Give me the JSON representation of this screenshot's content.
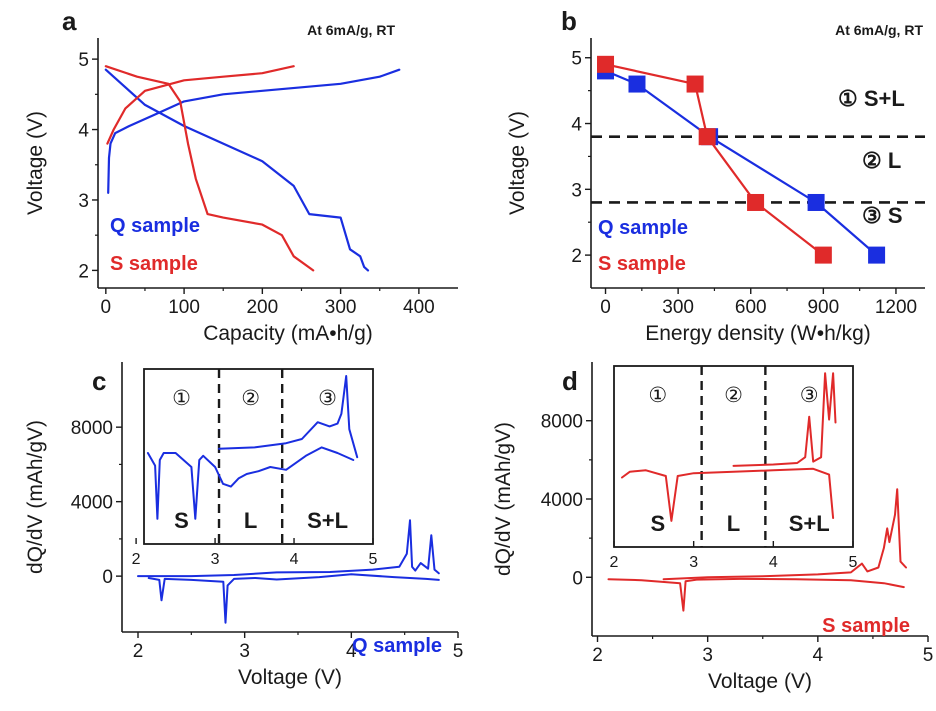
{
  "panels": {
    "a": {
      "letter": "a",
      "note": "At 6mA/g, RT"
    },
    "b": {
      "letter": "b",
      "note": "At 6mA/g, RT",
      "regions": {
        "r1": "① S+L",
        "r2": "② L",
        "r3": "③ S"
      }
    },
    "c": {
      "letter": "c"
    },
    "d": {
      "letter": "d"
    }
  },
  "colors": {
    "q": "#1a2ee0",
    "s": "#e02a2a",
    "axis": "#1a1a1a"
  },
  "chart_data": [
    {
      "id": "a",
      "type": "line",
      "xlabel": "Capacity (mA•h/g)",
      "ylabel": "Voltage (V)",
      "xlim": [
        -10,
        450
      ],
      "ylim": [
        1.75,
        5.3
      ],
      "xticks": [
        "0",
        "100",
        "200",
        "300",
        "400"
      ],
      "yticks": [
        "2",
        "3",
        "4",
        "5"
      ],
      "legend": [
        "Q sample",
        "S sample"
      ],
      "series": [
        {
          "name": "Q sample",
          "segment": "charge",
          "points": [
            [
              3,
              3.1
            ],
            [
              4,
              3.6
            ],
            [
              6,
              3.8
            ],
            [
              12,
              3.95
            ],
            [
              30,
              4.05
            ],
            [
              60,
              4.2
            ],
            [
              100,
              4.4
            ],
            [
              150,
              4.5
            ],
            [
              200,
              4.55
            ],
            [
              250,
              4.6
            ],
            [
              300,
              4.65
            ],
            [
              350,
              4.75
            ],
            [
              375,
              4.85
            ]
          ]
        },
        {
          "name": "Q sample",
          "segment": "discharge",
          "points": [
            [
              0,
              4.85
            ],
            [
              20,
              4.65
            ],
            [
              50,
              4.35
            ],
            [
              100,
              4.05
            ],
            [
              150,
              3.8
            ],
            [
              200,
              3.55
            ],
            [
              240,
              3.2
            ],
            [
              260,
              2.8
            ],
            [
              300,
              2.75
            ],
            [
              312,
              2.3
            ],
            [
              325,
              2.2
            ],
            [
              330,
              2.05
            ],
            [
              335,
              2.0
            ]
          ]
        },
        {
          "name": "S sample",
          "segment": "charge",
          "points": [
            [
              2,
              3.8
            ],
            [
              10,
              4.0
            ],
            [
              25,
              4.3
            ],
            [
              50,
              4.55
            ],
            [
              100,
              4.7
            ],
            [
              150,
              4.75
            ],
            [
              200,
              4.8
            ],
            [
              240,
              4.9
            ]
          ]
        },
        {
          "name": "S sample",
          "segment": "discharge",
          "points": [
            [
              0,
              4.9
            ],
            [
              40,
              4.75
            ],
            [
              80,
              4.65
            ],
            [
              95,
              4.4
            ],
            [
              105,
              3.8
            ],
            [
              115,
              3.3
            ],
            [
              130,
              2.8
            ],
            [
              150,
              2.75
            ],
            [
              200,
              2.65
            ],
            [
              225,
              2.5
            ],
            [
              240,
              2.2
            ],
            [
              265,
              2.0
            ]
          ]
        }
      ]
    },
    {
      "id": "b",
      "type": "line",
      "xlabel": "Energy density (W•h/kg)",
      "ylabel": "Voltage (V)",
      "xlim": [
        -60,
        1320
      ],
      "ylim": [
        1.5,
        5.3
      ],
      "xticks": [
        "0",
        "300",
        "600",
        "900",
        "1200"
      ],
      "yticks": [
        "2",
        "3",
        "4",
        "5"
      ],
      "legend": [
        "Q sample",
        "S sample"
      ],
      "dashed_lines_y": [
        3.8,
        2.8
      ],
      "series": [
        {
          "name": "Q sample",
          "x": [
            0,
            130,
            430,
            870,
            1120
          ],
          "y": [
            4.8,
            4.6,
            3.8,
            2.8,
            2.0
          ]
        },
        {
          "name": "S sample",
          "x": [
            0,
            370,
            420,
            620,
            900
          ],
          "y": [
            4.9,
            4.6,
            3.8,
            2.8,
            2.0
          ]
        }
      ]
    },
    {
      "id": "c",
      "type": "line",
      "xlabel": "Voltage (V)",
      "ylabel": "dQ/dV (mAh/gV)",
      "xlim": [
        1.85,
        5.0
      ],
      "ylim": [
        -3000,
        11500
      ],
      "xticks": [
        "2",
        "3",
        "4",
        "5"
      ],
      "yticks": [
        "0",
        "4000",
        "8000"
      ],
      "legend": [
        "Q sample"
      ],
      "series": [
        {
          "name": "Q sample",
          "segment": "charge",
          "points": [
            [
              2.0,
              0
            ],
            [
              2.5,
              0
            ],
            [
              2.9,
              60
            ],
            [
              3.3,
              200
            ],
            [
              3.8,
              220
            ],
            [
              4.2,
              350
            ],
            [
              4.45,
              500
            ],
            [
              4.52,
              1200
            ],
            [
              4.55,
              3000
            ],
            [
              4.57,
              500
            ],
            [
              4.6,
              300
            ],
            [
              4.65,
              700
            ],
            [
              4.72,
              400
            ],
            [
              4.75,
              2200
            ],
            [
              4.78,
              350
            ],
            [
              4.82,
              150
            ]
          ]
        },
        {
          "name": "Q sample",
          "segment": "discharge",
          "points": [
            [
              4.82,
              -200
            ],
            [
              4.7,
              -150
            ],
            [
              4.4,
              -50
            ],
            [
              4.0,
              100
            ],
            [
              3.7,
              -50
            ],
            [
              3.3,
              -180
            ],
            [
              3.1,
              -100
            ],
            [
              2.9,
              -150
            ],
            [
              2.84,
              -500
            ],
            [
              2.82,
              -2500
            ],
            [
              2.8,
              -300
            ],
            [
              2.5,
              -200
            ],
            [
              2.25,
              -150
            ],
            [
              2.22,
              -1300
            ],
            [
              2.2,
              -200
            ],
            [
              2.1,
              -100
            ]
          ]
        }
      ],
      "inset": {
        "xlim": [
          2.1,
          5.0
        ],
        "xticks": [
          "2",
          "3",
          "4",
          "5"
        ],
        "dashed_x": [
          3.05,
          3.85
        ],
        "circles": [
          "①",
          "②",
          "③"
        ],
        "regions": [
          "S",
          "L",
          "S+L"
        ],
        "series": [
          {
            "name": "Q sample",
            "segment": "charge",
            "points": [
              [
                3.05,
                6800
              ],
              [
                3.5,
                6900
              ],
              [
                3.9,
                7200
              ],
              [
                4.1,
                7500
              ],
              [
                4.3,
                8700
              ],
              [
                4.45,
                8400
              ],
              [
                4.55,
                8600
              ],
              [
                4.6,
                9300
              ],
              [
                4.66,
                12000
              ],
              [
                4.7,
                8200
              ],
              [
                4.8,
                6200
              ]
            ]
          },
          {
            "name": "Q sample",
            "segment": "discharge",
            "points": [
              [
                4.75,
                6000
              ],
              [
                4.55,
                6500
              ],
              [
                4.35,
                6900
              ],
              [
                4.15,
                6300
              ],
              [
                3.9,
                5300
              ],
              [
                3.7,
                5500
              ],
              [
                3.55,
                5200
              ],
              [
                3.4,
                5000
              ],
              [
                3.3,
                4700
              ],
              [
                3.2,
                4100
              ],
              [
                3.1,
                4300
              ],
              [
                3.0,
                5500
              ],
              [
                2.85,
                6300
              ],
              [
                2.8,
                6000
              ],
              [
                2.75,
                1800
              ],
              [
                2.7,
                5500
              ],
              [
                2.5,
                6500
              ],
              [
                2.35,
                6500
              ],
              [
                2.3,
                6000
              ],
              [
                2.27,
                1800
              ],
              [
                2.24,
                5600
              ],
              [
                2.15,
                6500
              ]
            ]
          }
        ]
      }
    },
    {
      "id": "d",
      "type": "line",
      "xlabel": "Voltage (V)",
      "ylabel": "dQ/dV (mAh/gV)",
      "xlim": [
        1.95,
        5.0
      ],
      "ylim": [
        -3000,
        11000
      ],
      "xticks": [
        "2",
        "3",
        "4",
        "5"
      ],
      "yticks": [
        "0",
        "4000",
        "8000"
      ],
      "legend": [
        "S sample"
      ],
      "series": [
        {
          "name": "S sample",
          "segment": "charge",
          "points": [
            [
              2.6,
              -100
            ],
            [
              3.0,
              0
            ],
            [
              3.5,
              50
            ],
            [
              4.0,
              150
            ],
            [
              4.3,
              250
            ],
            [
              4.4,
              700
            ],
            [
              4.45,
              300
            ],
            [
              4.55,
              500
            ],
            [
              4.6,
              1500
            ],
            [
              4.63,
              2500
            ],
            [
              4.65,
              1800
            ],
            [
              4.7,
              3200
            ],
            [
              4.72,
              4500
            ],
            [
              4.75,
              800
            ],
            [
              4.8,
              500
            ]
          ]
        },
        {
          "name": "S sample",
          "segment": "discharge",
          "points": [
            [
              4.78,
              -500
            ],
            [
              4.6,
              -300
            ],
            [
              4.3,
              -150
            ],
            [
              3.8,
              -100
            ],
            [
              3.3,
              -80
            ],
            [
              2.9,
              -120
            ],
            [
              2.8,
              -200
            ],
            [
              2.78,
              -1700
            ],
            [
              2.75,
              -300
            ],
            [
              2.4,
              -150
            ],
            [
              2.1,
              -100
            ]
          ]
        }
      ],
      "inset": {
        "xlim": [
          2.0,
          5.0
        ],
        "xticks": [
          "2",
          "3",
          "4",
          "5"
        ],
        "dashed_x": [
          3.1,
          3.9
        ],
        "circles": [
          "①",
          "②",
          "③"
        ],
        "regions": [
          "S",
          "L",
          "S+L"
        ],
        "series": [
          {
            "name": "S sample",
            "segment": "charge",
            "points": [
              [
                3.5,
                5600
              ],
              [
                4.0,
                5700
              ],
              [
                4.3,
                5800
              ],
              [
                4.4,
                6200
              ],
              [
                4.45,
                9000
              ],
              [
                4.5,
                5900
              ],
              [
                4.6,
                6200
              ],
              [
                4.65,
                12000
              ],
              [
                4.7,
                8800
              ],
              [
                4.75,
                12000
              ],
              [
                4.78,
                8600
              ]
            ]
          },
          {
            "name": "S sample",
            "segment": "discharge",
            "points": [
              [
                4.75,
                2000
              ],
              [
                4.7,
                5000
              ],
              [
                4.5,
                5400
              ],
              [
                4.0,
                5300
              ],
              [
                3.5,
                5200
              ],
              [
                3.0,
                5100
              ],
              [
                2.8,
                4900
              ],
              [
                2.72,
                1800
              ],
              [
                2.65,
                4900
              ],
              [
                2.4,
                5300
              ],
              [
                2.2,
                5200
              ],
              [
                2.1,
                4800
              ]
            ]
          }
        ]
      }
    }
  ]
}
